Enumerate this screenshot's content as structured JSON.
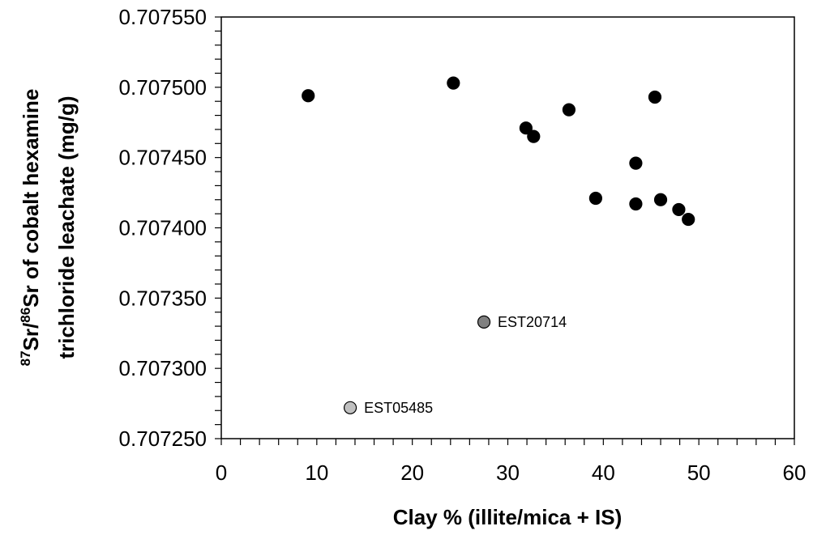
{
  "chart_data": {
    "type": "scatter",
    "title": "",
    "xlabel": "Clay % (illite/mica + IS)",
    "ylabel": {
      "sup1": "87",
      "sr1": "Sr/",
      "sup2": "86",
      "rest1": "Sr of cobalt hexamine",
      "line2": "trichloride leachate  (mg/g)"
    },
    "xlim": [
      0,
      60
    ],
    "ylim": [
      0.70725,
      0.70755
    ],
    "xticks": [
      "0",
      "10",
      "20",
      "30",
      "40",
      "50",
      "60"
    ],
    "yticks": [
      "0.707250",
      "0.707300",
      "0.707350",
      "0.707400",
      "0.707450",
      "0.707500",
      "0.707550"
    ],
    "grid": false,
    "series": [
      {
        "color": "#000000",
        "points": [
          {
            "x": 9.1,
            "y": 0.707494
          },
          {
            "x": 24.3,
            "y": 0.707503
          },
          {
            "x": 31.9,
            "y": 0.707471
          },
          {
            "x": 32.7,
            "y": 0.707465
          },
          {
            "x": 36.4,
            "y": 0.707484
          },
          {
            "x": 39.2,
            "y": 0.707421
          },
          {
            "x": 43.4,
            "y": 0.707446
          },
          {
            "x": 43.4,
            "y": 0.707417
          },
          {
            "x": 45.4,
            "y": 0.707493
          },
          {
            "x": 46.0,
            "y": 0.70742
          },
          {
            "x": 47.9,
            "y": 0.707413
          },
          {
            "x": 48.9,
            "y": 0.707406
          }
        ]
      },
      {
        "color": "#808080",
        "points": [
          {
            "x": 27.5,
            "y": 0.707333,
            "label": "EST20714"
          }
        ]
      },
      {
        "color": "#c0c0c0",
        "points": [
          {
            "x": 13.5,
            "y": 0.707272,
            "label": "EST05485"
          }
        ]
      }
    ]
  }
}
